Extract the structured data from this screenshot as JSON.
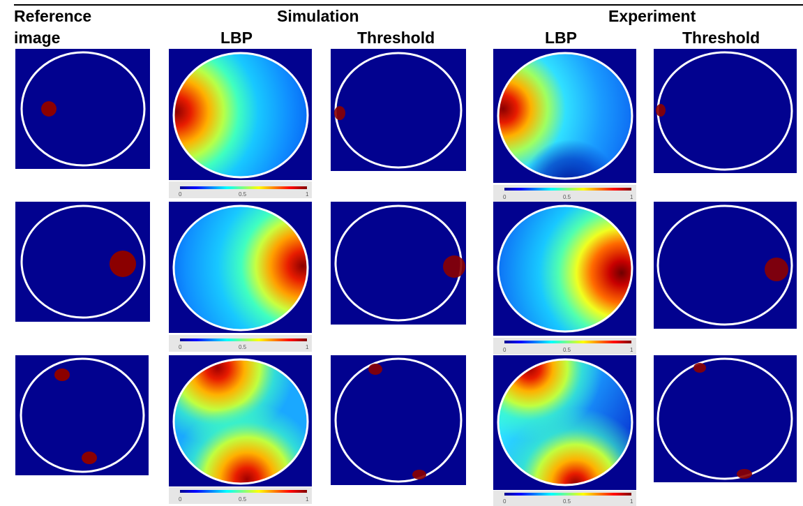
{
  "header": {
    "reference_line1": "Reference",
    "reference_line2": "image",
    "simulation": "Simulation",
    "experiment": "Experiment",
    "sim_lbp": "LBP",
    "sim_threshold": "Threshold",
    "exp_lbp": "LBP",
    "exp_threshold": "Threshold"
  },
  "colorbar": {
    "min": "0",
    "mid": "0.5",
    "max": "1"
  },
  "colors": {
    "background": "#02028f",
    "ring": "#ffffff",
    "inclusion": "#8b0000"
  },
  "rows": [
    {
      "inclusion_positions": [
        "left"
      ]
    },
    {
      "inclusion_positions": [
        "right"
      ]
    },
    {
      "inclusion_positions": [
        "top-left",
        "bottom"
      ]
    }
  ]
}
